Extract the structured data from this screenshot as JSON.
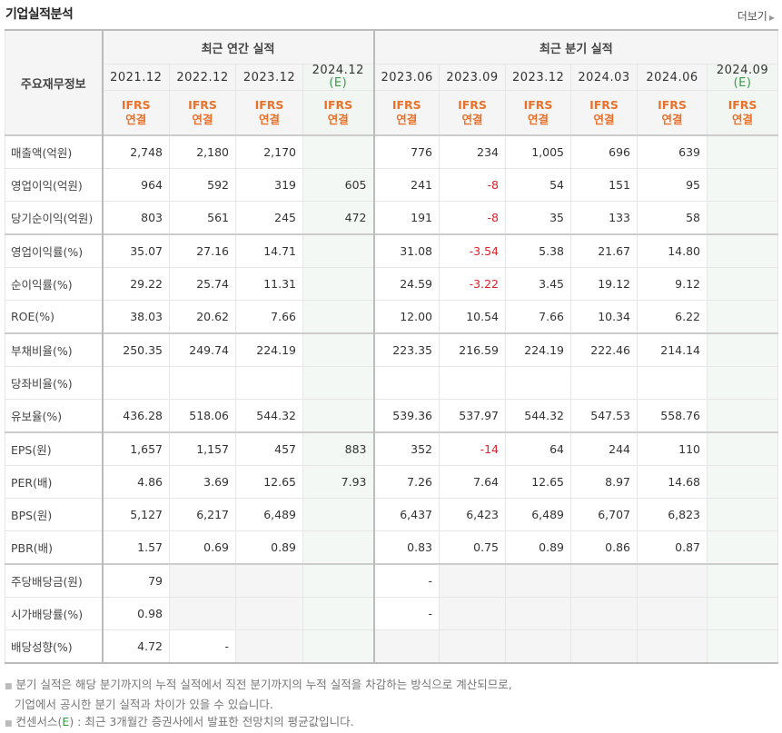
{
  "title": "기업실적분석",
  "more_label": "더보기",
  "header": {
    "row_label": "주요재무정보",
    "annual_group": "최근 연간 실적",
    "quarter_group": "최근 분기 실적",
    "periods": [
      {
        "label": "2021.12",
        "est": false
      },
      {
        "label": "2022.12",
        "est": false
      },
      {
        "label": "2023.12",
        "est": false
      },
      {
        "label": "2024.12",
        "est": true
      },
      {
        "label": "2023.06",
        "est": false
      },
      {
        "label": "2023.09",
        "est": false
      },
      {
        "label": "2023.12",
        "est": false
      },
      {
        "label": "2024.03",
        "est": false
      },
      {
        "label": "2024.06",
        "est": false
      },
      {
        "label": "2024.09",
        "est": true
      }
    ],
    "est_mark": "(E)",
    "ifrs": "IFRS",
    "consolidated": "연결"
  },
  "rows": [
    {
      "label": "매출액(억원)",
      "values": [
        "2,748",
        "2,180",
        "2,170",
        "",
        "776",
        "234",
        "1,005",
        "696",
        "639",
        ""
      ],
      "group_start": true
    },
    {
      "label": "영업이익(억원)",
      "values": [
        "964",
        "592",
        "319",
        "605",
        "241",
        "-8",
        "54",
        "151",
        "95",
        ""
      ]
    },
    {
      "label": "당기순이익(억원)",
      "values": [
        "803",
        "561",
        "245",
        "472",
        "191",
        "-8",
        "35",
        "133",
        "58",
        ""
      ]
    },
    {
      "label": "영업이익률(%)",
      "values": [
        "35.07",
        "27.16",
        "14.71",
        "",
        "31.08",
        "-3.54",
        "5.38",
        "21.67",
        "14.80",
        ""
      ],
      "group_start": true
    },
    {
      "label": "순이익률(%)",
      "values": [
        "29.22",
        "25.74",
        "11.31",
        "",
        "24.59",
        "-3.22",
        "3.45",
        "19.12",
        "9.12",
        ""
      ]
    },
    {
      "label": "ROE(%)",
      "values": [
        "38.03",
        "20.62",
        "7.66",
        "",
        "12.00",
        "10.54",
        "7.66",
        "10.34",
        "6.22",
        ""
      ]
    },
    {
      "label": "부채비율(%)",
      "values": [
        "250.35",
        "249.74",
        "224.19",
        "",
        "223.35",
        "216.59",
        "224.19",
        "222.46",
        "214.14",
        ""
      ],
      "group_start": true
    },
    {
      "label": "당좌비율(%)",
      "values": [
        "",
        "",
        "",
        "",
        "",
        "",
        "",
        "",
        "",
        ""
      ]
    },
    {
      "label": "유보율(%)",
      "values": [
        "436.28",
        "518.06",
        "544.32",
        "",
        "539.36",
        "537.97",
        "544.32",
        "547.53",
        "558.76",
        ""
      ]
    },
    {
      "label": "EPS(원)",
      "values": [
        "1,657",
        "1,157",
        "457",
        "883",
        "352",
        "-14",
        "64",
        "244",
        "110",
        ""
      ],
      "group_start": true
    },
    {
      "label": "PER(배)",
      "values": [
        "4.86",
        "3.69",
        "12.65",
        "7.93",
        "7.26",
        "7.64",
        "12.65",
        "8.97",
        "14.68",
        ""
      ]
    },
    {
      "label": "BPS(원)",
      "values": [
        "5,127",
        "6,217",
        "6,489",
        "",
        "6,437",
        "6,423",
        "6,489",
        "6,707",
        "6,823",
        ""
      ]
    },
    {
      "label": "PBR(배)",
      "values": [
        "1.57",
        "0.69",
        "0.89",
        "",
        "0.83",
        "0.75",
        "0.89",
        "0.86",
        "0.87",
        ""
      ]
    },
    {
      "label": "주당배당금(원)",
      "values": [
        "79",
        null,
        null,
        null,
        "-",
        null,
        null,
        null,
        null,
        null
      ],
      "group_start": true
    },
    {
      "label": "시가배당률(%)",
      "values": [
        "0.98",
        null,
        null,
        null,
        "-",
        null,
        null,
        null,
        null,
        null
      ]
    },
    {
      "label": "배당성향(%)",
      "values": [
        "4.72",
        "-",
        null,
        null,
        null,
        null,
        null,
        null,
        null,
        null
      ]
    }
  ],
  "notes": [
    "분기 실적은 해당 분기까지의 누적 실적에서 직전 분기까지의 누적 실적을 차감하는 방식으로 계산되므로,",
    "기업에서 공시한 분기 실적과 차이가 있을 수 있습니다.",
    "컨센서스",
    "(E)",
    ") : 최근 3개월간 증권사에서 발표한 전망치의 평균값입니다."
  ],
  "colors": {
    "negative": "#e0202a",
    "ifrs": "#e8722c",
    "estimate": "#3a9a4a"
  }
}
